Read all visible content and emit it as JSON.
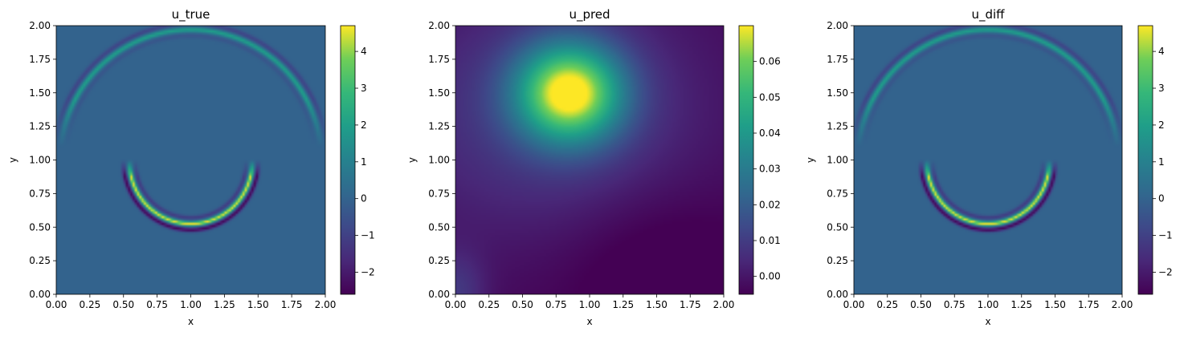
{
  "chart_data": [
    {
      "type": "heatmap",
      "title": "u_true",
      "xlabel": "x",
      "ylabel": "y",
      "xlim": [
        0,
        2
      ],
      "ylim": [
        0,
        2
      ],
      "x_ticks": [
        "0.00",
        "0.25",
        "0.50",
        "0.75",
        "1.00",
        "1.25",
        "1.50",
        "1.75",
        "2.00"
      ],
      "y_ticks": [
        "0.00",
        "0.25",
        "0.50",
        "0.75",
        "1.00",
        "1.25",
        "1.50",
        "1.75",
        "2.00"
      ],
      "colorbar": {
        "range": [
          -2.6,
          4.7
        ],
        "ticks": [
          -2,
          -1,
          0,
          1,
          2,
          3,
          4
        ],
        "tick_labels": [
          "−2",
          "−1",
          "0",
          "1",
          "2",
          "3",
          "4"
        ]
      },
      "colormap": "viridis",
      "field": {
        "background": 0,
        "rings": [
          {
            "center": [
              1.0,
              1.0
            ],
            "radius": 0.97,
            "crest": 2.0,
            "trough": -0.9,
            "arc": "upper",
            "y_min": 1.1
          },
          {
            "center": [
              1.0,
              0.98
            ],
            "radius": 0.455,
            "crest": 4.6,
            "trough": -2.5,
            "arc": "lower",
            "y_min": 0.5,
            "y_max": 1.0
          }
        ]
      }
    },
    {
      "type": "heatmap",
      "title": "u_pred",
      "xlabel": "x",
      "ylabel": "y",
      "xlim": [
        0,
        2
      ],
      "ylim": [
        0,
        2
      ],
      "x_ticks": [
        "0.00",
        "0.25",
        "0.50",
        "0.75",
        "1.00",
        "1.25",
        "1.50",
        "1.75",
        "2.00"
      ],
      "y_ticks": [
        "0.00",
        "0.25",
        "0.50",
        "0.75",
        "1.00",
        "1.25",
        "1.50",
        "1.75",
        "2.00"
      ],
      "colorbar": {
        "range": [
          -0.005,
          0.07
        ],
        "ticks": [
          0.0,
          0.01,
          0.02,
          0.03,
          0.04,
          0.05,
          0.06
        ],
        "tick_labels": [
          "0.00",
          "0.01",
          "0.02",
          "0.03",
          "0.04",
          "0.05",
          "0.06"
        ]
      },
      "colormap": "viridis",
      "field": {
        "blob_center": [
          0.85,
          1.5
        ],
        "peak": 0.068,
        "min": -0.004
      }
    },
    {
      "type": "heatmap",
      "title": "u_diff",
      "xlabel": "x",
      "ylabel": "y",
      "xlim": [
        0,
        2
      ],
      "ylim": [
        0,
        2
      ],
      "x_ticks": [
        "0.00",
        "0.25",
        "0.50",
        "0.75",
        "1.00",
        "1.25",
        "1.50",
        "1.75",
        "2.00"
      ],
      "y_ticks": [
        "0.00",
        "0.25",
        "0.50",
        "0.75",
        "1.00",
        "1.25",
        "1.50",
        "1.75",
        "2.00"
      ],
      "colorbar": {
        "range": [
          -2.6,
          4.7
        ],
        "ticks": [
          -2,
          -1,
          0,
          1,
          2,
          3,
          4
        ],
        "tick_labels": [
          "−2",
          "−1",
          "0",
          "1",
          "2",
          "3",
          "4"
        ]
      },
      "colormap": "viridis",
      "field": {
        "background": 0,
        "rings": [
          {
            "center": [
              1.0,
              1.0
            ],
            "radius": 0.97,
            "crest": 2.0,
            "trough": -0.9,
            "arc": "upper",
            "y_min": 1.1
          },
          {
            "center": [
              1.0,
              0.98
            ],
            "radius": 0.455,
            "crest": 4.6,
            "trough": -2.5,
            "arc": "lower",
            "y_min": 0.5,
            "y_max": 1.0
          }
        ]
      }
    }
  ]
}
